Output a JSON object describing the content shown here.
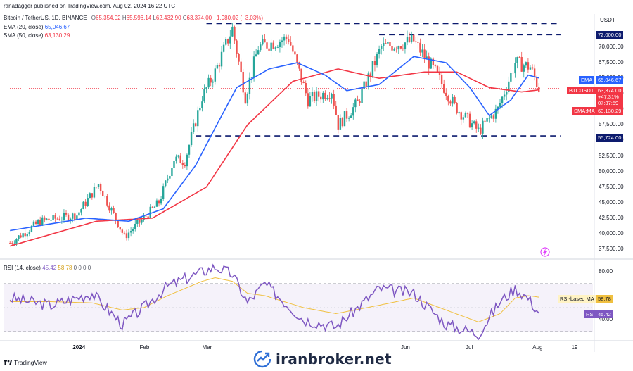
{
  "header": {
    "published": "ranadagger published on TradingView.com, Aug 02, 2024 16:22 UTC",
    "symbol": "Bitcoin / TetherUS, 1D, BINANCE",
    "ohlc": {
      "o_label": "O",
      "o": "65,354.02",
      "h_label": "H",
      "h": "65,596.14",
      "l_label": "L",
      "l": "62,432.90",
      "c_label": "C",
      "c": "63,374.00",
      "change": "−1,980.02 (−3.03%)"
    },
    "ema_label": "EMA (20, close)",
    "ema_value": "65,046.67",
    "sma_label": "SMA (50, close)",
    "sma_value": "63,130.29",
    "currency": "USDT"
  },
  "rsi_header": {
    "label": "RSI (14, close)",
    "rsi": "45.42",
    "rsi_ma": "58.78",
    "zeros": "0 0 0 0"
  },
  "price_tags": {
    "resistance": "72,000.00",
    "ema_name": "EMA",
    "ema": "65,046.67",
    "btc_name": "BTCUSDT",
    "btc_price": "63,374.00",
    "btc_pct": "+47.31%",
    "btc_time": "07:37:59",
    "sma_name": "SMA:MA",
    "sma": "63,130.29",
    "support": "55,724.00"
  },
  "rsi_tags": {
    "ma_name": "RSI-based MA",
    "ma": "58.78",
    "rsi_name": "RSI",
    "rsi": "45.42"
  },
  "footer": {
    "brand": "iranbroker.net",
    "tv": "TradingView"
  },
  "colors": {
    "up": "#26a69a",
    "down": "#ef5350",
    "ema": "#2962ff",
    "sma": "#f23645",
    "rsi": "#7e57c2",
    "rsi_ma": "#f0c040",
    "level": "#0d1b6e"
  },
  "chart_data": {
    "type": "candlestick",
    "price_axis": {
      "ticks": [
        "70,000.00",
        "67,500.00",
        "65,000.00",
        "62,500.00",
        "60,000.00",
        "57,500.00",
        "55,000.00",
        "52,500.00",
        "50,000.00",
        "47,500.00",
        "45,000.00",
        "42,500.00",
        "40,000.00",
        "37,500.00"
      ],
      "range": [
        37000,
        74500
      ]
    },
    "x_axis": {
      "labels": [
        "2024",
        "Feb",
        "Mar",
        "Jun",
        "Jul",
        "Aug",
        "19"
      ],
      "dates": [
        "2024-01-01",
        "2024-02-01",
        "2024-03-01",
        "2024-06-01",
        "2024-07-01",
        "2024-08-01",
        "2024-08-19"
      ]
    },
    "horizontal_levels": [
      {
        "value": 73800,
        "style": "dashed",
        "from": "2024-03-01",
        "to": "2024-08-12"
      },
      {
        "value": 72000,
        "style": "dashed",
        "from": "2024-05-20",
        "to": "2024-08-12"
      },
      {
        "value": 55724,
        "style": "dashed",
        "from": "2024-02-25",
        "to": "2024-08-12"
      }
    ],
    "close_approx": {
      "dates": [
        "2023-12-01",
        "2023-12-15",
        "2024-01-01",
        "2024-01-08",
        "2024-01-11",
        "2024-01-23",
        "2024-02-01",
        "2024-02-08",
        "2024-02-15",
        "2024-02-20",
        "2024-02-28",
        "2024-03-05",
        "2024-03-13",
        "2024-03-19",
        "2024-03-25",
        "2024-04-08",
        "2024-04-17",
        "2024-04-28",
        "2024-05-01",
        "2024-05-10",
        "2024-05-21",
        "2024-06-05",
        "2024-06-15",
        "2024-06-24",
        "2024-07-05",
        "2024-07-14",
        "2024-07-22",
        "2024-07-29",
        "2024-08-02"
      ],
      "values": [
        38500,
        42000,
        43000,
        46500,
        48000,
        39500,
        42500,
        45000,
        52000,
        51700,
        62000,
        66000,
        73000,
        62000,
        70000,
        71500,
        61500,
        63000,
        57500,
        61000,
        70000,
        71000,
        66000,
        60500,
        56500,
        60000,
        67500,
        66800,
        63374
      ]
    },
    "ema20_approx": {
      "dates": [
        "2023-12-01",
        "2024-01-05",
        "2024-01-25",
        "2024-02-10",
        "2024-02-25",
        "2024-03-05",
        "2024-03-15",
        "2024-03-30",
        "2024-04-12",
        "2024-04-25",
        "2024-05-05",
        "2024-05-20",
        "2024-06-05",
        "2024-06-20",
        "2024-07-01",
        "2024-07-10",
        "2024-07-20",
        "2024-07-28",
        "2024-08-02"
      ],
      "values": [
        40500,
        42500,
        42000,
        44000,
        51000,
        57000,
        63500,
        66500,
        67500,
        65500,
        63000,
        64000,
        68500,
        67500,
        63500,
        59000,
        61500,
        65500,
        65046.67
      ]
    },
    "sma50_approx": {
      "dates": [
        "2023-12-01",
        "2024-01-10",
        "2024-02-05",
        "2024-03-01",
        "2024-03-20",
        "2024-04-10",
        "2024-05-01",
        "2024-05-20",
        "2024-06-10",
        "2024-06-25",
        "2024-07-10",
        "2024-07-25",
        "2024-08-02"
      ],
      "values": [
        38000,
        42000,
        42500,
        47500,
        57500,
        64500,
        66500,
        65000,
        66000,
        66000,
        63500,
        62800,
        63130.29
      ]
    },
    "rsi14": {
      "axis_ticks": [
        "80.00",
        "40.00"
      ],
      "levels": [
        70,
        30
      ],
      "dates": [
        "2023-12-01",
        "2023-12-20",
        "2024-01-08",
        "2024-01-22",
        "2024-02-01",
        "2024-02-12",
        "2024-02-28",
        "2024-03-05",
        "2024-03-13",
        "2024-03-20",
        "2024-03-28",
        "2024-04-15",
        "2024-04-30",
        "2024-05-20",
        "2024-06-05",
        "2024-06-20",
        "2024-07-05",
        "2024-07-15",
        "2024-07-22",
        "2024-07-28",
        "2024-08-02"
      ],
      "values": [
        58,
        52,
        62,
        36,
        50,
        68,
        80,
        84,
        78,
        54,
        70,
        40,
        34,
        66,
        62,
        36,
        28,
        55,
        66,
        58,
        45.42
      ],
      "ma_values": [
        55,
        55,
        54,
        48,
        50,
        60,
        72,
        75,
        72,
        62,
        60,
        50,
        45,
        52,
        58,
        48,
        38,
        45,
        58,
        60,
        58.78
      ]
    }
  }
}
